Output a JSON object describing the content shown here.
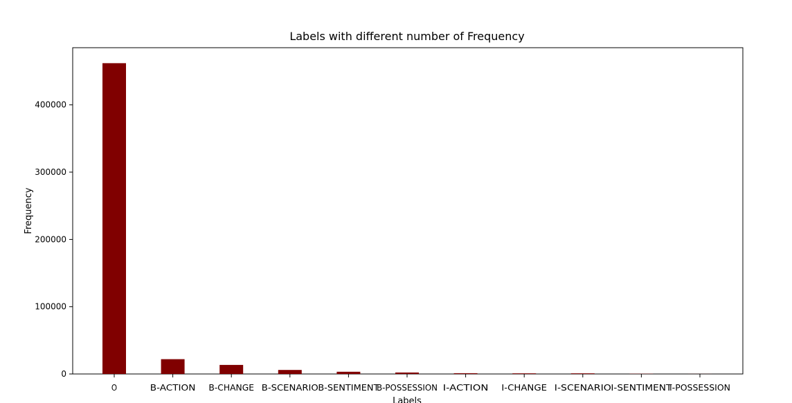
{
  "chart_data": {
    "type": "bar",
    "title": "Labels with different number of Frequency",
    "xlabel": "Labels",
    "ylabel": "Frequency",
    "categories": [
      "O",
      "B-ACTION",
      "B-CHANGE",
      "B-SCENARIO",
      "B-SENTIMENT",
      "B-POSSESSION",
      "I-ACTION",
      "I-CHANGE",
      "I-SCENARIO",
      "I-SENTIMENT",
      "I-POSSESSION"
    ],
    "values": [
      462000,
      22000,
      13500,
      6000,
      3300,
      2200,
      1100,
      900,
      900,
      300,
      100
    ],
    "ylim": [
      0,
      485000
    ],
    "yticks": [
      0,
      100000,
      200000,
      300000,
      400000
    ],
    "ytick_labels": [
      "0",
      "100000",
      "200000",
      "300000",
      "400000"
    ],
    "grid": false,
    "bar_color": "#800000"
  }
}
